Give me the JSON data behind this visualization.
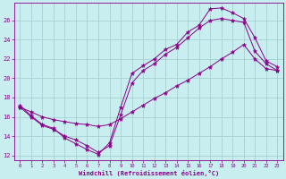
{
  "xlabel": "Windchill (Refroidissement éolien,°C)",
  "background_color": "#c8eef0",
  "grid_color": "#a0cccc",
  "line_color": "#880088",
  "x_ticks": [
    0,
    1,
    2,
    3,
    4,
    5,
    6,
    7,
    8,
    9,
    10,
    11,
    12,
    13,
    14,
    15,
    16,
    17,
    18,
    19,
    20,
    21,
    22,
    23
  ],
  "y_ticks": [
    12,
    14,
    16,
    18,
    20,
    22,
    24,
    26
  ],
  "ylim": [
    11.5,
    27.8
  ],
  "xlim": [
    -0.5,
    23.5
  ],
  "line1_x": [
    0,
    1,
    2,
    3,
    4,
    5,
    6,
    7,
    8,
    9,
    10,
    11,
    12,
    13,
    14,
    15,
    16,
    17,
    18,
    19,
    20,
    21,
    22,
    23
  ],
  "line1_y": [
    17.2,
    16.1,
    15.2,
    14.8,
    13.8,
    13.2,
    12.6,
    12.1,
    13.3,
    17.0,
    20.5,
    21.3,
    22.0,
    23.0,
    23.5,
    24.8,
    25.5,
    27.2,
    27.3,
    26.8,
    26.2,
    24.2,
    21.8,
    21.2
  ],
  "line2_x": [
    0,
    1,
    2,
    3,
    4,
    5,
    6,
    7,
    8,
    9,
    10,
    11,
    12,
    13,
    14,
    15,
    16,
    17,
    18,
    19,
    20,
    21,
    22,
    23
  ],
  "line2_y": [
    17.0,
    16.0,
    15.1,
    14.7,
    14.0,
    13.6,
    13.0,
    12.3,
    13.0,
    16.2,
    19.5,
    20.8,
    21.5,
    22.5,
    23.2,
    24.2,
    25.2,
    26.0,
    26.2,
    26.0,
    25.8,
    22.8,
    21.5,
    20.8
  ],
  "line3_x": [
    0,
    1,
    2,
    3,
    4,
    5,
    6,
    7,
    8,
    9,
    10,
    11,
    12,
    13,
    14,
    15,
    16,
    17,
    18,
    19,
    20,
    21,
    22,
    23
  ],
  "line3_y": [
    17.0,
    16.5,
    16.0,
    15.7,
    15.5,
    15.3,
    15.2,
    15.0,
    15.2,
    15.8,
    16.5,
    17.2,
    17.9,
    18.5,
    19.2,
    19.8,
    20.5,
    21.2,
    22.0,
    22.7,
    23.5,
    22.0,
    21.0,
    20.8
  ]
}
